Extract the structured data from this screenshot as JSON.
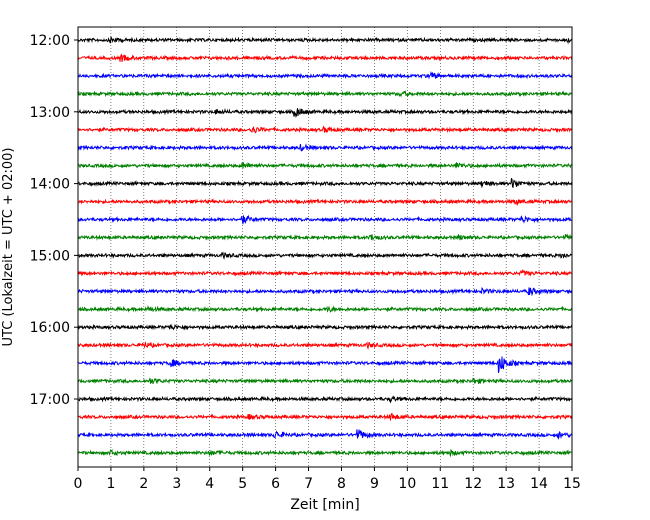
{
  "chart_data": {
    "type": "line",
    "xlabel": "Zeit  [min]",
    "ylabel": "UTC (Lokalzeit = UTC + 02:00)",
    "xlim": [
      0,
      15
    ],
    "x_ticks": [
      "0",
      "1",
      "2",
      "3",
      "4",
      "5",
      "6",
      "7",
      "8",
      "9",
      "10",
      "11",
      "12",
      "13",
      "14",
      "15"
    ],
    "y_tick_labels": [
      "12:00",
      "13:00",
      "14:00",
      "15:00",
      "16:00",
      "17:00"
    ],
    "grid": "vertical dotted lines at each minute",
    "trace_interval_minutes": 15,
    "trace_color_cycle": [
      "#000000",
      "#ff0000",
      "#0000ff",
      "#008000"
    ],
    "series": [
      {
        "start": "12:00",
        "color": "#000000",
        "events": [
          [
            1.0,
            2.0
          ],
          [
            14.8,
            1.5
          ]
        ]
      },
      {
        "start": "12:15",
        "color": "#ff0000",
        "events": [
          [
            1.3,
            2.5
          ]
        ]
      },
      {
        "start": "12:30",
        "color": "#0000ff",
        "events": [
          [
            10.7,
            2.5
          ]
        ]
      },
      {
        "start": "12:45",
        "color": "#008000",
        "events": [
          [
            9.8,
            1.5
          ]
        ]
      },
      {
        "start": "13:00",
        "color": "#000000",
        "events": [
          [
            6.6,
            4.0
          ],
          [
            4.2,
            1.5
          ]
        ]
      },
      {
        "start": "13:15",
        "color": "#ff0000",
        "events": [
          [
            5.3,
            2.5
          ],
          [
            7.5,
            1.5
          ]
        ]
      },
      {
        "start": "13:30",
        "color": "#0000ff",
        "events": [
          [
            6.8,
            2.0
          ]
        ]
      },
      {
        "start": "13:45",
        "color": "#008000",
        "events": [
          [
            5.0,
            2.0
          ],
          [
            11.5,
            2.0
          ]
        ]
      },
      {
        "start": "14:00",
        "color": "#000000",
        "events": [
          [
            12.3,
            2.0
          ],
          [
            13.2,
            3.5
          ]
        ]
      },
      {
        "start": "14:15",
        "color": "#ff0000",
        "events": [
          [
            13.3,
            1.5
          ]
        ]
      },
      {
        "start": "14:30",
        "color": "#0000ff",
        "events": [
          [
            5.0,
            3.0
          ],
          [
            13.5,
            2.0
          ]
        ]
      },
      {
        "start": "14:45",
        "color": "#008000",
        "events": [
          [
            8.9,
            2.0
          ],
          [
            11.6,
            1.5
          ],
          [
            14.8,
            1.5
          ]
        ]
      },
      {
        "start": "15:00",
        "color": "#000000",
        "events": [
          [
            4.4,
            1.5
          ],
          [
            14.7,
            1.5
          ]
        ]
      },
      {
        "start": "15:15",
        "color": "#ff0000",
        "events": [
          [
            13.5,
            1.5
          ]
        ]
      },
      {
        "start": "15:30",
        "color": "#0000ff",
        "events": [
          [
            13.7,
            3.0
          ],
          [
            12.3,
            1.5
          ]
        ]
      },
      {
        "start": "15:45",
        "color": "#008000",
        "events": [
          [
            2.1,
            1.5
          ],
          [
            7.6,
            1.5
          ]
        ]
      },
      {
        "start": "16:00",
        "color": "#000000",
        "events": [
          [
            2.8,
            1.5
          ]
        ]
      },
      {
        "start": "16:15",
        "color": "#ff0000",
        "events": [
          [
            2.0,
            1.5
          ],
          [
            8.8,
            1.5
          ]
        ]
      },
      {
        "start": "16:30",
        "color": "#0000ff",
        "events": [
          [
            2.8,
            3.0
          ],
          [
            12.8,
            8.0
          ]
        ]
      },
      {
        "start": "16:45",
        "color": "#008000",
        "events": [
          [
            2.2,
            2.0
          ],
          [
            12.0,
            2.0
          ]
        ]
      },
      {
        "start": "17:00",
        "color": "#000000",
        "events": [
          [
            9.5,
            1.5
          ]
        ]
      },
      {
        "start": "17:15",
        "color": "#ff0000",
        "events": [
          [
            5.2,
            1.5
          ],
          [
            9.5,
            2.5
          ]
        ]
      },
      {
        "start": "17:30",
        "color": "#0000ff",
        "events": [
          [
            6.0,
            2.5
          ],
          [
            8.5,
            4.0
          ],
          [
            14.6,
            2.0
          ]
        ]
      },
      {
        "start": "17:45",
        "color": "#008000",
        "events": [
          [
            1.0,
            1.5
          ],
          [
            4.0,
            1.5
          ],
          [
            11.3,
            1.5
          ]
        ]
      }
    ]
  }
}
